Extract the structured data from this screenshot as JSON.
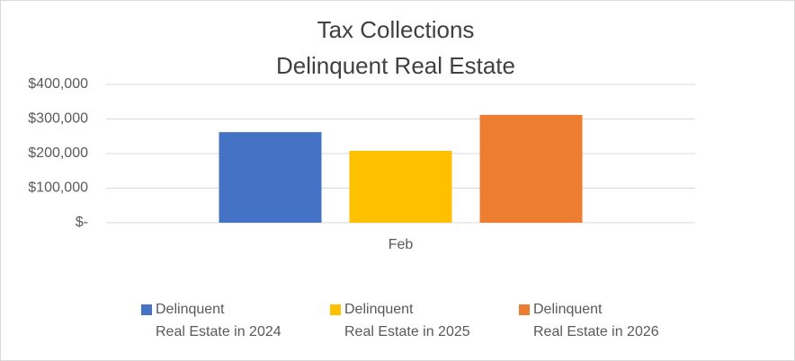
{
  "chart_data": {
    "type": "bar",
    "title": "Tax Collections",
    "subtitle": "Delinquent Real Estate",
    "categories": [
      "Feb"
    ],
    "series": [
      {
        "name": "Delinquent Real Estate in 2024",
        "color": "#4472c4",
        "values": [
          262000
        ]
      },
      {
        "name": "Delinquent Real Estate in 2025",
        "color": "#ffc000",
        "values": [
          208000
        ]
      },
      {
        "name": "Delinquent Real Estate in 2026",
        "color": "#ed7d31",
        "values": [
          312000
        ]
      }
    ],
    "ylim": [
      0,
      400000
    ],
    "yticks": [
      {
        "value": 0,
        "label": "$-"
      },
      {
        "value": 100000,
        "label": "$100,000"
      },
      {
        "value": 200000,
        "label": "$200,000"
      },
      {
        "value": 300000,
        "label": "$300,000"
      },
      {
        "value": 400000,
        "label": "$400,000"
      }
    ],
    "grid": true,
    "legend": "bottom"
  }
}
